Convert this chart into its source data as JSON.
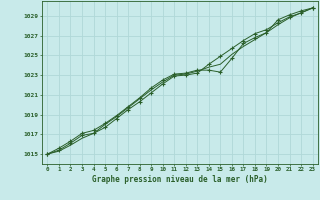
{
  "title": "Graphe pression niveau de la mer (hPa)",
  "background_color": "#c8eaea",
  "grid_color": "#b0d8d8",
  "line_color": "#2a5f2a",
  "marker_color": "#2a5f2a",
  "xlim": [
    -0.5,
    23.5
  ],
  "ylim": [
    1014.0,
    1030.5
  ],
  "xticks": [
    0,
    1,
    2,
    3,
    4,
    5,
    6,
    7,
    8,
    9,
    10,
    11,
    12,
    13,
    14,
    15,
    16,
    17,
    18,
    19,
    20,
    21,
    22,
    23
  ],
  "yticks": [
    1015,
    1017,
    1019,
    1021,
    1023,
    1025,
    1027,
    1029
  ],
  "x": [
    0,
    1,
    2,
    3,
    4,
    5,
    6,
    7,
    8,
    9,
    10,
    11,
    12,
    13,
    14,
    15,
    16,
    17,
    18,
    19,
    20,
    21,
    22,
    23
  ],
  "y_upper": [
    1015.0,
    1015.6,
    1016.3,
    1017.1,
    1017.4,
    1018.1,
    1018.9,
    1019.8,
    1020.7,
    1021.7,
    1022.5,
    1023.1,
    1023.2,
    1023.5,
    1023.5,
    1023.3,
    1024.7,
    1026.2,
    1026.8,
    1027.3,
    1028.6,
    1029.1,
    1029.5,
    1029.8
  ],
  "y_mid": [
    1015.0,
    1015.3,
    1015.9,
    1016.6,
    1017.1,
    1018.0,
    1018.8,
    1019.7,
    1020.6,
    1021.5,
    1022.3,
    1023.0,
    1023.1,
    1023.4,
    1023.8,
    1024.1,
    1025.1,
    1025.9,
    1026.6,
    1027.3,
    1028.1,
    1028.8,
    1029.3,
    1029.8
  ],
  "y_lower": [
    1015.0,
    1015.4,
    1016.1,
    1016.9,
    1017.1,
    1017.7,
    1018.6,
    1019.5,
    1020.3,
    1021.2,
    1022.1,
    1022.9,
    1023.0,
    1023.2,
    1024.1,
    1024.9,
    1025.7,
    1026.5,
    1027.2,
    1027.6,
    1028.3,
    1028.9,
    1029.3,
    1029.8
  ]
}
